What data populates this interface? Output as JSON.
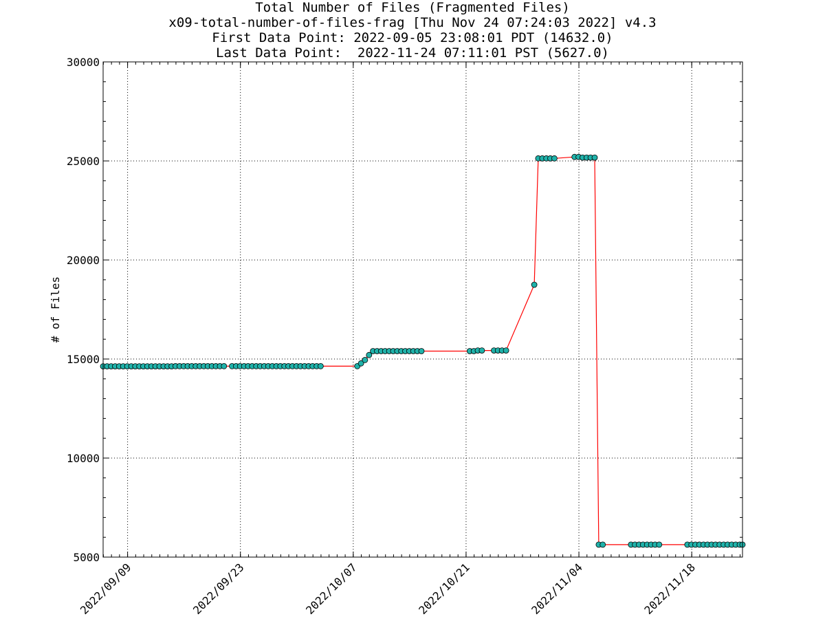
{
  "title_lines": [
    "Total Number of Files (Fragmented Files)",
    "x09-total-number-of-files-frag [Thu Nov 24 07:24:03 2022] v4.3",
    "First Data Point: 2022-09-05 23:08:01 PDT (14632.0)",
    "Last Data Point:  2022-11-24 07:11:01 PST (5627.0)"
  ],
  "chart_data": {
    "type": "line",
    "ylabel": "# of Files",
    "xlabel": "",
    "ylim": [
      5000,
      30000
    ],
    "xlim": [
      "2022-09-05 23:08",
      "2022-11-24 07:11"
    ],
    "yticks": [
      5000,
      10000,
      15000,
      20000,
      25000,
      30000
    ],
    "xticks": [
      "2022/09/09",
      "2022/09/23",
      "2022/10/07",
      "2022/10/21",
      "2022/11/04",
      "2022/11/18"
    ],
    "grid": true,
    "line_color": "#ff0000",
    "marker_color": "#20b2aa",
    "marker_edge_color": "#000000",
    "series": [
      {
        "points": [
          [
            "2022-09-05 23:08",
            14632
          ],
          [
            "2022-09-06 11:00",
            14632
          ],
          [
            "2022-09-06 23:00",
            14632
          ],
          [
            "2022-09-07 11:00",
            14632
          ],
          [
            "2022-09-07 23:00",
            14632
          ],
          [
            "2022-09-08 11:00",
            14632
          ],
          [
            "2022-09-08 23:00",
            14632
          ],
          [
            "2022-09-09 11:00",
            14632
          ],
          [
            "2022-09-09 23:00",
            14632
          ],
          [
            "2022-09-10 11:00",
            14632
          ],
          [
            "2022-09-10 23:00",
            14632
          ],
          [
            "2022-09-11 11:00",
            14632
          ],
          [
            "2022-09-11 23:00",
            14632
          ],
          [
            "2022-09-12 11:00",
            14632
          ],
          [
            "2022-09-12 23:00",
            14632
          ],
          [
            "2022-09-13 11:00",
            14632
          ],
          [
            "2022-09-13 23:00",
            14632
          ],
          [
            "2022-09-14 11:00",
            14632
          ],
          [
            "2022-09-14 23:00",
            14640
          ],
          [
            "2022-09-15 11:00",
            14640
          ],
          [
            "2022-09-15 23:00",
            14640
          ],
          [
            "2022-09-16 11:00",
            14640
          ],
          [
            "2022-09-16 23:00",
            14640
          ],
          [
            "2022-09-17 11:00",
            14640
          ],
          [
            "2022-09-17 23:00",
            14640
          ],
          [
            "2022-09-18 11:00",
            14640
          ],
          [
            "2022-09-18 23:00",
            14640
          ],
          [
            "2022-09-19 11:00",
            14640
          ],
          [
            "2022-09-19 23:00",
            14640
          ],
          [
            "2022-09-20 11:00",
            14640
          ],
          [
            "2022-09-20 23:00",
            14640
          ],
          [
            "2022-09-21 23:00",
            14640
          ],
          [
            "2022-09-22 11:00",
            14640
          ],
          [
            "2022-09-22 23:00",
            14640
          ],
          [
            "2022-09-23 11:00",
            14640
          ],
          [
            "2022-09-23 23:00",
            14640
          ],
          [
            "2022-09-24 11:00",
            14640
          ],
          [
            "2022-09-24 23:00",
            14640
          ],
          [
            "2022-09-25 11:00",
            14640
          ],
          [
            "2022-09-25 23:00",
            14640
          ],
          [
            "2022-09-26 11:00",
            14640
          ],
          [
            "2022-09-26 23:00",
            14640
          ],
          [
            "2022-09-27 11:00",
            14640
          ],
          [
            "2022-09-27 23:00",
            14640
          ],
          [
            "2022-09-28 11:00",
            14640
          ],
          [
            "2022-09-28 23:00",
            14640
          ],
          [
            "2022-09-29 11:00",
            14640
          ],
          [
            "2022-09-29 23:00",
            14640
          ],
          [
            "2022-09-30 11:00",
            14640
          ],
          [
            "2022-09-30 23:00",
            14640
          ],
          [
            "2022-10-01 11:00",
            14640
          ],
          [
            "2022-10-01 23:00",
            14640
          ],
          [
            "2022-10-02 11:00",
            14640
          ],
          [
            "2022-10-02 23:00",
            14640
          ],
          [
            "2022-10-07 12:00",
            14640
          ],
          [
            "2022-10-07 23:00",
            14780
          ],
          [
            "2022-10-08 11:00",
            14950
          ],
          [
            "2022-10-08 23:00",
            15200
          ],
          [
            "2022-10-09 11:00",
            15400
          ],
          [
            "2022-10-09 23:00",
            15400
          ],
          [
            "2022-10-10 11:00",
            15400
          ],
          [
            "2022-10-10 23:00",
            15400
          ],
          [
            "2022-10-11 11:00",
            15400
          ],
          [
            "2022-10-11 23:00",
            15400
          ],
          [
            "2022-10-12 11:00",
            15400
          ],
          [
            "2022-10-12 23:00",
            15400
          ],
          [
            "2022-10-13 11:00",
            15400
          ],
          [
            "2022-10-13 23:00",
            15400
          ],
          [
            "2022-10-14 11:00",
            15400
          ],
          [
            "2022-10-14 23:00",
            15400
          ],
          [
            "2022-10-15 11:00",
            15400
          ],
          [
            "2022-10-21 11:00",
            15400
          ],
          [
            "2022-10-21 23:00",
            15400
          ],
          [
            "2022-10-22 11:00",
            15430
          ],
          [
            "2022-10-22 23:00",
            15430
          ],
          [
            "2022-10-24 11:00",
            15430
          ],
          [
            "2022-10-24 23:00",
            15430
          ],
          [
            "2022-10-25 11:00",
            15430
          ],
          [
            "2022-10-25 23:00",
            15430
          ],
          [
            "2022-10-29 11:00",
            18750
          ],
          [
            "2022-10-29 23:00",
            25130
          ],
          [
            "2022-10-30 11:00",
            25130
          ],
          [
            "2022-10-30 23:00",
            25130
          ],
          [
            "2022-10-31 11:00",
            25130
          ],
          [
            "2022-10-31 23:00",
            25130
          ],
          [
            "2022-11-03 11:00",
            25200
          ],
          [
            "2022-11-03 23:00",
            25200
          ],
          [
            "2022-11-04 11:00",
            25170
          ],
          [
            "2022-11-04 23:00",
            25170
          ],
          [
            "2022-11-05 11:00",
            25170
          ],
          [
            "2022-11-05 23:00",
            25170
          ],
          [
            "2022-11-06 11:00",
            5627
          ],
          [
            "2022-11-06 23:00",
            5627
          ],
          [
            "2022-11-10 11:00",
            5627
          ],
          [
            "2022-11-10 23:00",
            5627
          ],
          [
            "2022-11-11 11:00",
            5627
          ],
          [
            "2022-11-11 23:00",
            5627
          ],
          [
            "2022-11-12 11:00",
            5627
          ],
          [
            "2022-11-12 23:00",
            5627
          ],
          [
            "2022-11-13 11:00",
            5627
          ],
          [
            "2022-11-13 23:00",
            5627
          ],
          [
            "2022-11-17 11:00",
            5627
          ],
          [
            "2022-11-17 23:00",
            5627
          ],
          [
            "2022-11-18 11:00",
            5627
          ],
          [
            "2022-11-18 23:00",
            5627
          ],
          [
            "2022-11-19 11:00",
            5627
          ],
          [
            "2022-11-19 23:00",
            5627
          ],
          [
            "2022-11-20 11:00",
            5627
          ],
          [
            "2022-11-20 23:00",
            5627
          ],
          [
            "2022-11-21 11:00",
            5627
          ],
          [
            "2022-11-21 23:00",
            5627
          ],
          [
            "2022-11-22 11:00",
            5627
          ],
          [
            "2022-11-22 23:00",
            5627
          ],
          [
            "2022-11-23 11:00",
            5627
          ],
          [
            "2022-11-23 23:00",
            5627
          ],
          [
            "2022-11-24 07:11",
            5627
          ]
        ]
      }
    ]
  }
}
